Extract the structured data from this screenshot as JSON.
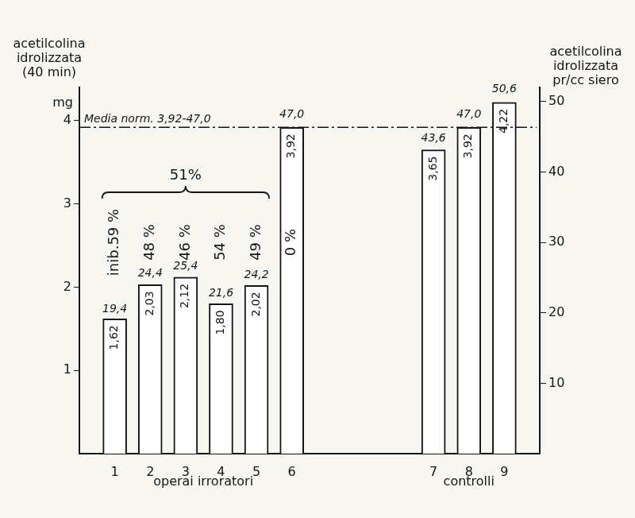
{
  "chart_data": {
    "type": "bar",
    "categories": [
      null,
      "1",
      "2",
      "3",
      "4",
      "5",
      "6",
      null,
      null,
      null,
      "7",
      "8",
      "9",
      null
    ],
    "series": [
      {
        "color": "#ffffff",
        "values": [
          null,
          1.62,
          2.03,
          2.12,
          1.8,
          2.02,
          3.92,
          null,
          null,
          null,
          3.65,
          3.92,
          4.22,
          null
        ],
        "value_labels": [
          null,
          "1,62",
          "2,03",
          "2,12",
          "1,80",
          "2,02",
          "3,92",
          null,
          null,
          null,
          "3,65",
          "3,92",
          "4,22",
          null
        ]
      },
      {
        "axis": "y2",
        "values": [
          null,
          19.4,
          24.4,
          25.4,
          21.6,
          24.2,
          47.0,
          null,
          null,
          null,
          43.6,
          47.0,
          50.6,
          null
        ],
        "value_labels": [
          null,
          "19,4",
          "24,4",
          "25,4",
          "21,6",
          "24,2",
          "47,0",
          null,
          null,
          null,
          "43,6",
          "47,0",
          "50,6",
          null
        ]
      }
    ],
    "ylabel": [
      "acetilcolina",
      "idrolizzata",
      "(40 min)"
    ],
    "yunit": "mg",
    "y2label": [
      "acetilcolina",
      "idrolizzata",
      "pr/cc siero"
    ],
    "ylim": [
      0,
      4.4
    ],
    "yticks": [
      1,
      2,
      3,
      4
    ],
    "y2lim": [
      0,
      52
    ],
    "y2ticks": [
      10,
      20,
      30,
      40,
      50
    ],
    "grid": false,
    "data_labels": true,
    "inhibition": [
      null,
      59,
      48,
      46,
      54,
      49,
      0,
      null,
      null,
      null,
      null,
      null,
      null,
      null
    ],
    "inhibition_labels": [
      null,
      "inib.59 %",
      "48 %",
      "46 %",
      "54 %",
      "49 %",
      "0 %",
      null,
      null,
      null,
      null,
      null,
      null,
      null
    ],
    "mean_inhibition": {
      "value": 51,
      "label": "51%",
      "from": "1",
      "to": "5"
    },
    "reference_line": {
      "value": 3.92,
      "label": "Media norm. 3,92-47,0"
    },
    "x_groups": [
      {
        "label": "operai irroratori",
        "from": "1",
        "to": "6"
      },
      {
        "label": "controlli",
        "from": "7",
        "to": "9"
      }
    ]
  }
}
